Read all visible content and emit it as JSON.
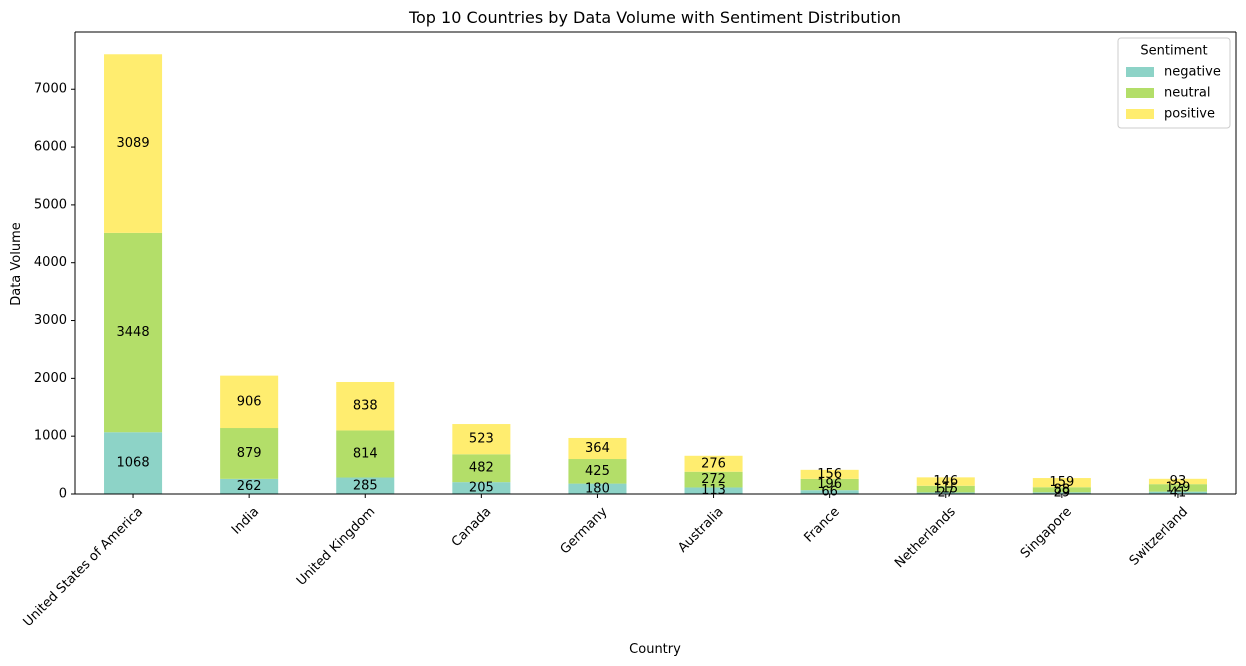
{
  "chart_data": {
    "type": "bar",
    "stacked": true,
    "title": "Top 10 Countries by Data Volume with Sentiment Distribution",
    "xlabel": "Country",
    "ylabel": "Data Volume",
    "ylim": [
      0,
      7990
    ],
    "yticks": [
      0,
      1000,
      2000,
      3000,
      4000,
      5000,
      6000,
      7000
    ],
    "grid": false,
    "legend": {
      "title": "Sentiment",
      "position": "top-right"
    },
    "categories": [
      "United States of America",
      "India",
      "United Kingdom",
      "Canada",
      "Germany",
      "Australia",
      "France",
      "Netherlands",
      "Singapore",
      "Switzerland"
    ],
    "series": [
      {
        "name": "negative",
        "color": "#8dd3c7",
        "values": [
          1068,
          262,
          285,
          205,
          180,
          113,
          66,
          27,
          29,
          41
        ]
      },
      {
        "name": "neutral",
        "color": "#b3de69",
        "values": [
          3448,
          879,
          814,
          482,
          425,
          272,
          196,
          115,
          88,
          129
        ]
      },
      {
        "name": "positive",
        "color": "#ffed6f",
        "values": [
          3089,
          906,
          838,
          523,
          364,
          276,
          156,
          146,
          159,
          93
        ]
      }
    ]
  }
}
